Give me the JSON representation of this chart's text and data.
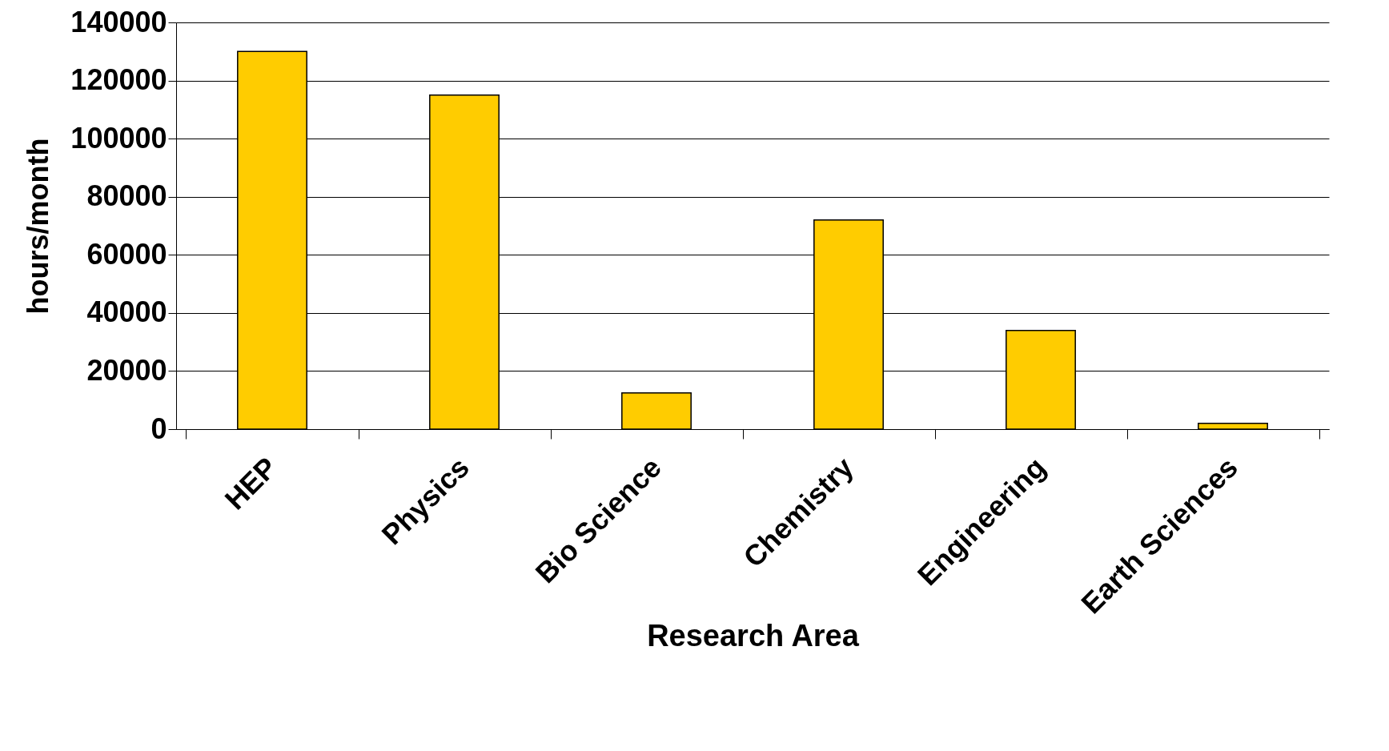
{
  "chart_data": {
    "type": "bar",
    "xlabel": "Research Area",
    "ylabel": "hours/month",
    "categories": [
      "HEP",
      "Physics",
      "Bio Science",
      "Chemistry",
      "Engineering",
      "Earth Sciences"
    ],
    "values": [
      130000,
      115000,
      12500,
      72000,
      34000,
      2000
    ],
    "color": "#ffcc00",
    "ylim": [
      0,
      140000
    ],
    "yticks": [
      0,
      20000,
      40000,
      60000,
      80000,
      100000,
      120000,
      140000
    ],
    "grid": "y"
  }
}
